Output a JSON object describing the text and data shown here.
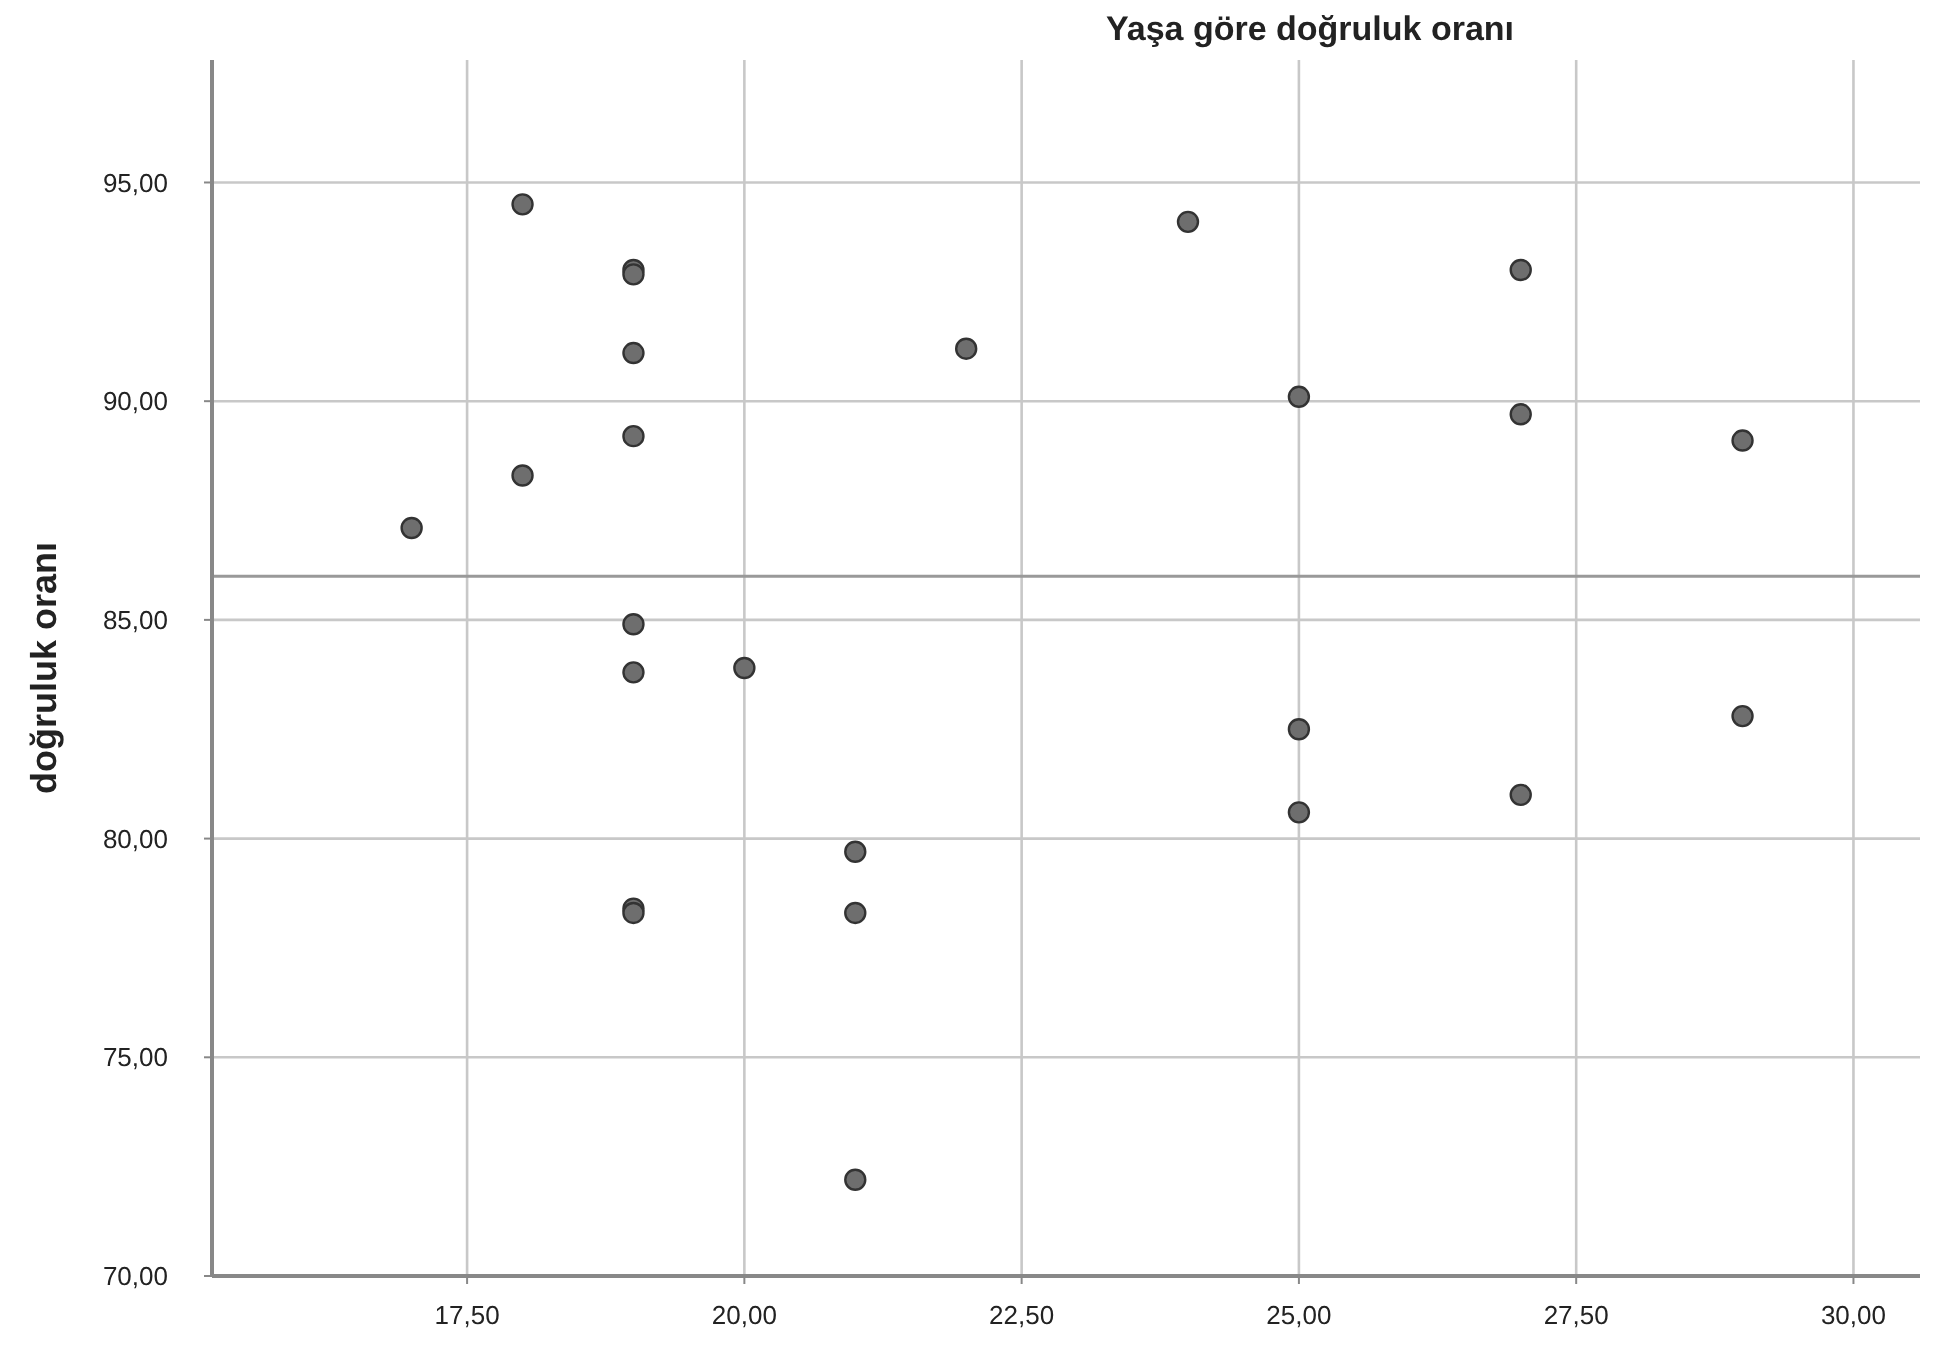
{
  "chart_data": {
    "type": "scatter",
    "title": "Yaşa göre doğruluk oranı",
    "ylabel": "doğruluk oranı",
    "x": [
      17,
      18,
      18,
      19,
      19,
      19,
      19,
      19,
      19,
      19,
      19,
      20,
      21,
      21,
      21,
      22,
      24,
      25,
      25,
      25,
      27,
      27,
      27,
      29,
      29
    ],
    "values": [
      87.1,
      94.5,
      88.3,
      93.0,
      92.9,
      91.1,
      89.2,
      84.9,
      83.8,
      78.4,
      78.3,
      83.9,
      79.7,
      78.3,
      72.2,
      91.2,
      94.1,
      90.1,
      82.5,
      80.6,
      93.0,
      89.7,
      81.0,
      89.1,
      82.8
    ],
    "color": "#6e6e6e",
    "marker": "circle",
    "xlim": [
      15.2,
      30.6
    ],
    "ylim": [
      70,
      97.8
    ],
    "xticks": [
      {
        "value": 17.5,
        "label": "17,50"
      },
      {
        "value": 20,
        "label": "20,00"
      },
      {
        "value": 22.5,
        "label": "22,50"
      },
      {
        "value": 25,
        "label": "25,00"
      },
      {
        "value": 27.5,
        "label": "27,50"
      },
      {
        "value": 30,
        "label": "30,00"
      }
    ],
    "yticks": [
      {
        "value": 70,
        "label": "70,00"
      },
      {
        "value": 75,
        "label": "75,00"
      },
      {
        "value": 80,
        "label": "80,00"
      },
      {
        "value": 85,
        "label": "85,00"
      },
      {
        "value": 90,
        "label": "90,00"
      },
      {
        "value": 95,
        "label": "95,00"
      }
    ],
    "grid": true,
    "ref_lines": [
      {
        "axis": "y",
        "value": 86.0,
        "color": "#999999"
      }
    ]
  }
}
